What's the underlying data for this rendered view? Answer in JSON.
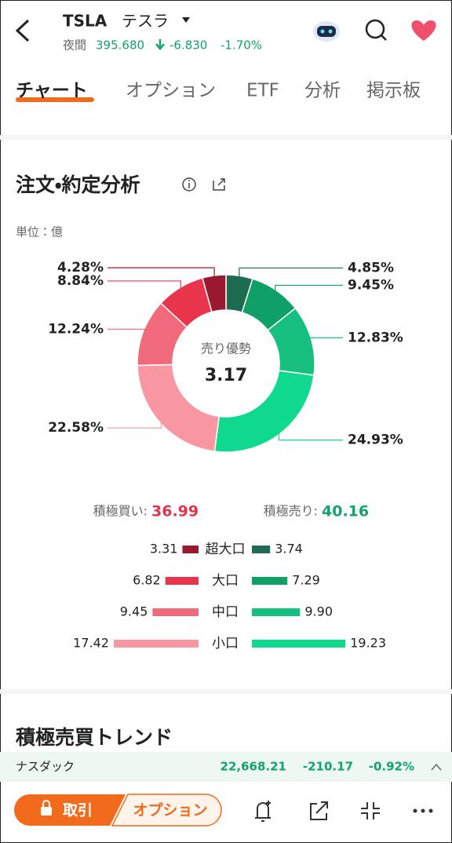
{
  "header": {
    "ticker": "TSLA",
    "name": "テスラ",
    "session": "夜間",
    "price": "395.680",
    "change": "-6.830",
    "change_pct": "-1.70%"
  },
  "tabs": [
    "チャート",
    "オプション",
    "ETF",
    "分析",
    "掲示板"
  ],
  "section": {
    "title": "注文・約定分析",
    "unit": "単位：億"
  },
  "chart_data": [
    {
      "type": "pie",
      "center_label": "売り優勢",
      "center_value": 3.17,
      "values": [
        4.85,
        9.45,
        12.83,
        24.93,
        22.58,
        12.24,
        8.84,
        4.28
      ],
      "value_labels": [
        "4.85%",
        "9.45%",
        "12.83%",
        "24.93%",
        "22.58%",
        "12.24%",
        "8.84%",
        "4.28%"
      ],
      "colors": [
        "#1d6b50",
        "#0fa068",
        "#17c07f",
        "#0ed98f",
        "#f897a1",
        "#f06a7b",
        "#e8354c",
        "#99192f"
      ]
    },
    {
      "type": "bar",
      "categories": [
        "超大口",
        "大口",
        "中口",
        "小口"
      ],
      "series": [
        {
          "color": [
            "#99192f",
            "#e8354c",
            "#f06a7b",
            "#f897a1"
          ],
          "values": [
            3.31,
            6.82,
            9.45,
            17.42
          ]
        },
        {
          "color": [
            "#1d6b50",
            "#0fa068",
            "#17c07f",
            "#0ed98f"
          ],
          "values": [
            3.74,
            7.29,
            9.9,
            19.23
          ],
          "value_labels": [
            "3.74",
            "7.29",
            "9.90",
            "19.23"
          ]
        }
      ]
    }
  ],
  "totals": {
    "buy_label": "積極買い:",
    "buy": 36.99,
    "sell_label": "積極売り:",
    "sell": 40.16
  },
  "section2_title": "積極売買トレンド",
  "ticker_bar": {
    "name": "ナスダック",
    "price": "22,668.21",
    "change": "-210.17",
    "change_pct": "-0.92%"
  },
  "bottom_bar": {
    "trade": "取引",
    "options": "オプション"
  }
}
